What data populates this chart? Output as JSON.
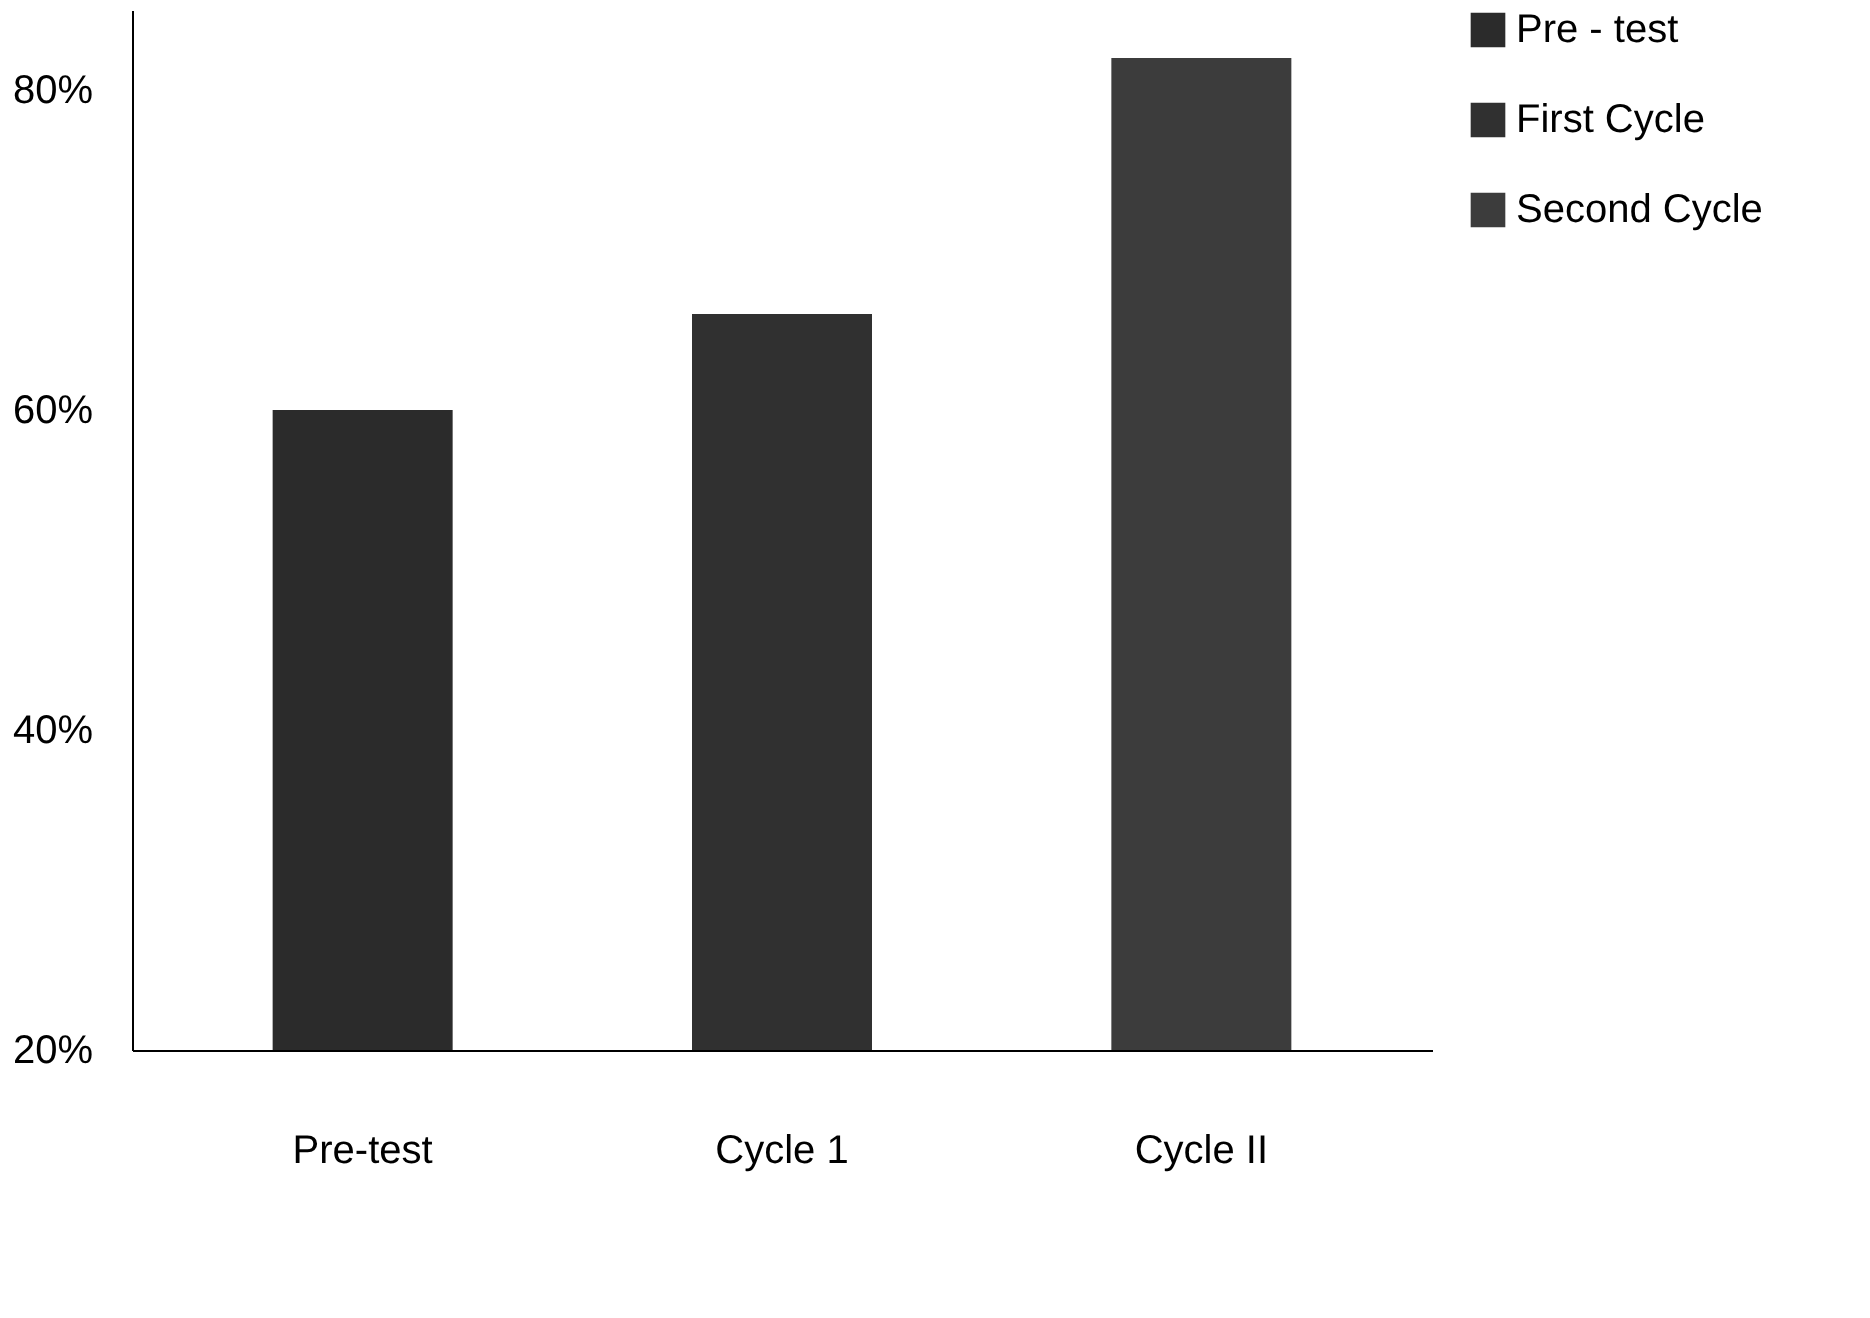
{
  "chart_data": {
    "type": "bar",
    "categories": [
      "Pre-test",
      "Cycle 1",
      "Cycle II"
    ],
    "series": [
      {
        "name": "Pre - test",
        "color": "#2b2b2b",
        "values": [
          60,
          null,
          null
        ]
      },
      {
        "name": "First Cycle",
        "color": "#303030",
        "values": [
          null,
          66,
          null
        ]
      },
      {
        "name": "Second Cycle",
        "color": "#3c3c3c",
        "values": [
          null,
          null,
          82
        ]
      }
    ],
    "ylim": [
      20,
      85
    ],
    "yticks": [
      {
        "value": 20,
        "label": "20%"
      },
      {
        "value": 40,
        "label": "40%"
      },
      {
        "value": 60,
        "label": "60%"
      },
      {
        "value": 80,
        "label": "80%"
      }
    ],
    "grid": false,
    "legend": "right"
  }
}
